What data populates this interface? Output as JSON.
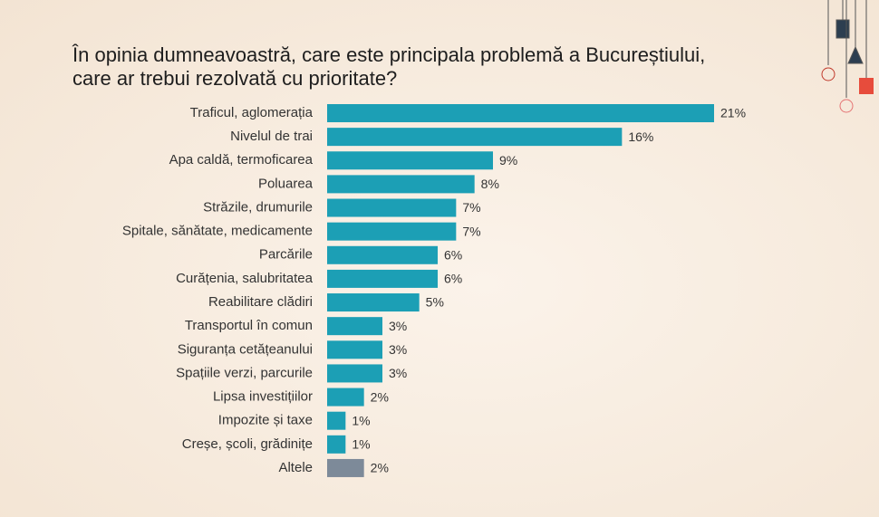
{
  "chart_data": {
    "type": "bar",
    "orientation": "horizontal",
    "title_lines": [
      "În opinia dumneavoastră, care este principala problemă a Bucureștiului,",
      "care ar trebui rezolvată cu prioritate?"
    ],
    "categories": [
      "Traficul, aglomerația",
      "Nivelul de trai",
      "Apa caldă, termoficarea",
      "Poluarea",
      "Străzile, drumurile",
      "Spitale, sănătate, medicamente",
      "Parcările",
      "Curățenia, salubritatea",
      "Reabilitare clădiri",
      "Transportul în comun",
      "Siguranța cetățeanului",
      "Spațiile verzi, parcurile",
      "Lipsa investițiilor",
      "Impozite și taxe",
      "Creșe, școli, grădinițe",
      "Altele"
    ],
    "values": [
      21,
      16,
      9,
      8,
      7,
      7,
      6,
      6,
      5,
      3,
      3,
      3,
      2,
      1,
      1,
      2
    ],
    "value_labels": [
      "21%",
      "16%",
      "9%",
      "8%",
      "7%",
      "7%",
      "6%",
      "6%",
      "5%",
      "3%",
      "3%",
      "3%",
      "2%",
      "1%",
      "1%",
      "2%"
    ],
    "colors": [
      "#1c9fb5",
      "#1c9fb5",
      "#1c9fb5",
      "#1c9fb5",
      "#1c9fb5",
      "#1c9fb5",
      "#1c9fb5",
      "#1c9fb5",
      "#1c9fb5",
      "#1c9fb5",
      "#1c9fb5",
      "#1c9fb5",
      "#1c9fb5",
      "#1c9fb5",
      "#1c9fb5",
      "#7d8a99"
    ]
  }
}
